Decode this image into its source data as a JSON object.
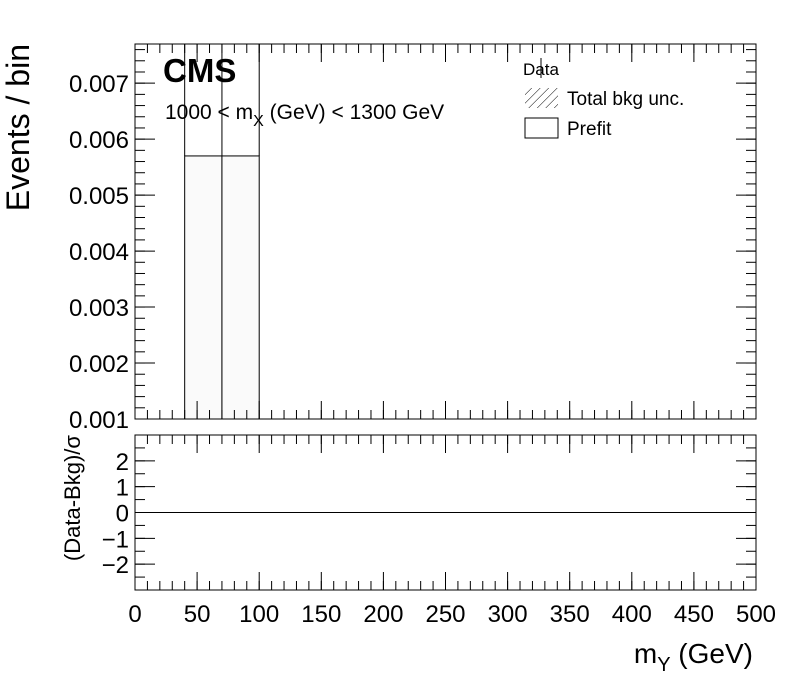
{
  "chart_data": {
    "type": "bar",
    "labels": {
      "experiment": "CMS",
      "region_lo": "1000 < m",
      "region_sub": "X",
      "region_hi": " (GeV) < 1300 GeV"
    },
    "legend": {
      "placement": "top-right",
      "entries": [
        {
          "label": "Data",
          "style": "marker"
        },
        {
          "label": "Total bkg unc.",
          "style": "hatch"
        },
        {
          "label": "Prefit",
          "style": "box"
        }
      ]
    },
    "xaxis": {
      "label_main": "m",
      "label_sub": "Y",
      "label_unit": " (GeV)",
      "range": [
        0,
        500
      ],
      "ticks": [
        0,
        50,
        100,
        150,
        200,
        250,
        300,
        350,
        400,
        450,
        500
      ],
      "tick_labels": [
        "0",
        "50",
        "100",
        "150",
        "200",
        "250",
        "300",
        "350",
        "400",
        "450",
        "500"
      ]
    },
    "top_panel": {
      "ylabel": "Events / bin",
      "yrange": [
        0.001,
        0.0077
      ],
      "ticks": [
        0.001,
        0.002,
        0.003,
        0.004,
        0.005,
        0.006,
        0.007
      ],
      "tick_labels": [
        "0.001",
        "0.002",
        "0.003",
        "0.004",
        "0.005",
        "0.006",
        "0.007"
      ],
      "bins": [
        {
          "lo": 40,
          "hi": 70,
          "value": 0.0057
        },
        {
          "lo": 70,
          "hi": 100,
          "value": 0.0057
        }
      ]
    },
    "ratio_panel": {
      "ylabel": "(Data-Bkg)/σ",
      "yrange": [
        -3,
        3
      ],
      "ticks": [
        -2,
        -1,
        0,
        1,
        2
      ],
      "tick_labels": [
        "−2",
        "−1",
        "0",
        "1",
        "2"
      ],
      "reference_line": 0
    }
  }
}
